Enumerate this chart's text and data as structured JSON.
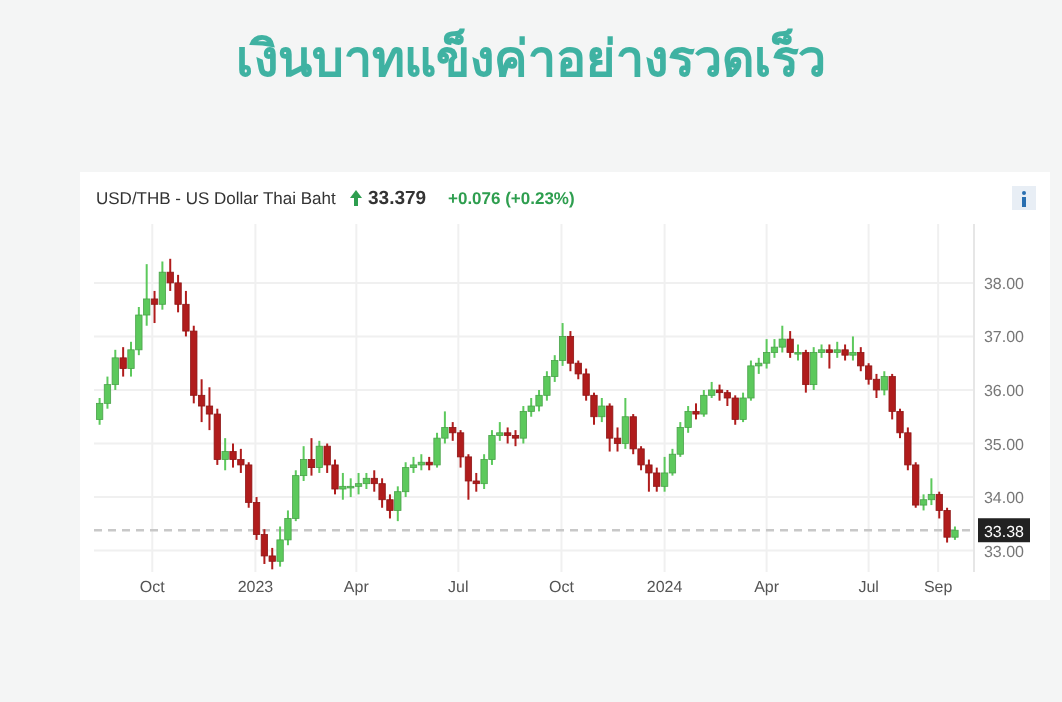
{
  "chart_data": {
    "type": "candlestick",
    "title": "เงินบาทแข็งค่าอย่างรวดเร็ว",
    "subtitle": "USD/THB - US Dollar Thai Baht",
    "annotations": [
      "33.379",
      "+0.076 (+0.23%)"
    ],
    "x": [
      "2022-08-15",
      "2022-08-22",
      "2022-08-29",
      "2022-09-05",
      "2022-09-12",
      "2022-09-19",
      "2022-09-26",
      "2022-10-03",
      "2022-10-10",
      "2022-10-17",
      "2022-10-24",
      "2022-10-31",
      "2022-11-07",
      "2022-11-14",
      "2022-11-21",
      "2022-11-28",
      "2022-12-05",
      "2022-12-12",
      "2022-12-19",
      "2022-12-26",
      "2023-01-02",
      "2023-01-09",
      "2023-01-16",
      "2023-01-23",
      "2023-01-30",
      "2023-02-06",
      "2023-02-13",
      "2023-02-20",
      "2023-02-27",
      "2023-03-06",
      "2023-03-13",
      "2023-03-20",
      "2023-03-27",
      "2023-04-03",
      "2023-04-10",
      "2023-04-17",
      "2023-04-24",
      "2023-05-01",
      "2023-05-08",
      "2023-05-15",
      "2023-05-22",
      "2023-05-29",
      "2023-06-05",
      "2023-06-12",
      "2023-06-19",
      "2023-06-26",
      "2023-07-03",
      "2023-07-10",
      "2023-07-17",
      "2023-07-24",
      "2023-07-31",
      "2023-08-07",
      "2023-08-14",
      "2023-08-21",
      "2023-08-28",
      "2023-09-04",
      "2023-09-11",
      "2023-09-18",
      "2023-09-25",
      "2023-10-02",
      "2023-10-09",
      "2023-10-16",
      "2023-10-23",
      "2023-10-30",
      "2023-11-06",
      "2023-11-13",
      "2023-11-20",
      "2023-11-27",
      "2023-12-04",
      "2023-12-11",
      "2023-12-18",
      "2023-12-25",
      "2024-01-01",
      "2024-01-08",
      "2024-01-15",
      "2024-01-22",
      "2024-01-29",
      "2024-02-05",
      "2024-02-12",
      "2024-02-19",
      "2024-02-26",
      "2024-03-04",
      "2024-03-11",
      "2024-03-18",
      "2024-03-25",
      "2024-04-01",
      "2024-04-08",
      "2024-04-15",
      "2024-04-22",
      "2024-04-29",
      "2024-05-06",
      "2024-05-13",
      "2024-05-20",
      "2024-05-27",
      "2024-06-03",
      "2024-06-10",
      "2024-06-17",
      "2024-06-24",
      "2024-07-01",
      "2024-07-08",
      "2024-07-15",
      "2024-07-22",
      "2024-07-29",
      "2024-08-05",
      "2024-08-12",
      "2024-08-19",
      "2024-08-26",
      "2024-09-02",
      "2024-09-09",
      "2024-09-16"
    ],
    "ohlc": [
      [
        35.45,
        35.85,
        35.35,
        35.75
      ],
      [
        35.75,
        36.25,
        35.65,
        36.1
      ],
      [
        36.1,
        36.75,
        36.0,
        36.6
      ],
      [
        36.6,
        36.8,
        36.25,
        36.4
      ],
      [
        36.4,
        36.9,
        36.25,
        36.75
      ],
      [
        36.75,
        37.55,
        36.65,
        37.4
      ],
      [
        37.4,
        38.35,
        37.2,
        37.7
      ],
      [
        37.7,
        37.85,
        37.25,
        37.6
      ],
      [
        37.6,
        38.4,
        37.5,
        38.2
      ],
      [
        38.2,
        38.45,
        37.85,
        38.0
      ],
      [
        38.0,
        38.15,
        37.45,
        37.6
      ],
      [
        37.6,
        37.85,
        37.0,
        37.1
      ],
      [
        37.1,
        37.2,
        35.75,
        35.9
      ],
      [
        35.9,
        36.2,
        35.4,
        35.7
      ],
      [
        35.7,
        36.05,
        35.25,
        35.55
      ],
      [
        35.55,
        35.65,
        34.6,
        34.7
      ],
      [
        34.7,
        35.1,
        34.5,
        34.85
      ],
      [
        34.85,
        35.0,
        34.55,
        34.7
      ],
      [
        34.7,
        34.9,
        34.45,
        34.6
      ],
      [
        34.6,
        34.65,
        33.8,
        33.9
      ],
      [
        33.9,
        34.0,
        33.2,
        33.3
      ],
      [
        33.3,
        33.4,
        32.75,
        32.9
      ],
      [
        32.9,
        33.05,
        32.65,
        32.8
      ],
      [
        32.8,
        33.45,
        32.7,
        33.2
      ],
      [
        33.2,
        33.75,
        33.1,
        33.6
      ],
      [
        33.6,
        34.5,
        33.55,
        34.4
      ],
      [
        34.4,
        34.95,
        34.3,
        34.7
      ],
      [
        34.7,
        35.1,
        34.4,
        34.55
      ],
      [
        34.55,
        35.05,
        34.45,
        34.95
      ],
      [
        34.95,
        35.0,
        34.45,
        34.6
      ],
      [
        34.6,
        34.7,
        34.05,
        34.15
      ],
      [
        34.15,
        34.45,
        33.95,
        34.2
      ],
      [
        34.2,
        34.35,
        34.0,
        34.2
      ],
      [
        34.2,
        34.45,
        34.05,
        34.25
      ],
      [
        34.25,
        34.45,
        34.15,
        34.35
      ],
      [
        34.35,
        34.5,
        34.1,
        34.25
      ],
      [
        34.25,
        34.35,
        33.8,
        33.95
      ],
      [
        33.95,
        34.05,
        33.6,
        33.75
      ],
      [
        33.75,
        34.2,
        33.55,
        34.1
      ],
      [
        34.1,
        34.65,
        34.0,
        34.55
      ],
      [
        34.55,
        34.75,
        34.45,
        34.6
      ],
      [
        34.6,
        34.8,
        34.5,
        34.65
      ],
      [
        34.65,
        34.75,
        34.5,
        34.6
      ],
      [
        34.6,
        35.2,
        34.55,
        35.1
      ],
      [
        35.1,
        35.6,
        35.0,
        35.3
      ],
      [
        35.3,
        35.4,
        35.05,
        35.2
      ],
      [
        35.2,
        35.25,
        34.55,
        34.75
      ],
      [
        34.75,
        34.8,
        33.95,
        34.3
      ],
      [
        34.3,
        34.45,
        34.1,
        34.25
      ],
      [
        34.25,
        34.8,
        34.15,
        34.7
      ],
      [
        34.7,
        35.25,
        34.6,
        35.15
      ],
      [
        35.15,
        35.4,
        35.05,
        35.2
      ],
      [
        35.2,
        35.3,
        35.0,
        35.15
      ],
      [
        35.15,
        35.25,
        34.95,
        35.1
      ],
      [
        35.1,
        35.7,
        35.0,
        35.6
      ],
      [
        35.6,
        35.85,
        35.5,
        35.7
      ],
      [
        35.7,
        36.0,
        35.6,
        35.9
      ],
      [
        35.9,
        36.35,
        35.8,
        36.25
      ],
      [
        36.25,
        36.65,
        36.15,
        36.55
      ],
      [
        36.55,
        37.25,
        36.45,
        37.0
      ],
      [
        37.0,
        37.1,
        36.35,
        36.5
      ],
      [
        36.5,
        36.55,
        36.2,
        36.3
      ],
      [
        36.3,
        36.4,
        35.8,
        35.9
      ],
      [
        35.9,
        35.95,
        35.35,
        35.5
      ],
      [
        35.5,
        35.85,
        35.4,
        35.7
      ],
      [
        35.7,
        35.75,
        34.85,
        35.1
      ],
      [
        35.1,
        35.3,
        34.85,
        35.0
      ],
      [
        35.0,
        35.85,
        34.9,
        35.5
      ],
      [
        35.5,
        35.55,
        34.8,
        34.9
      ],
      [
        34.9,
        34.95,
        34.5,
        34.6
      ],
      [
        34.6,
        34.7,
        34.1,
        34.45
      ],
      [
        34.45,
        34.55,
        34.1,
        34.2
      ],
      [
        34.2,
        34.75,
        34.1,
        34.45
      ],
      [
        34.45,
        34.9,
        34.4,
        34.8
      ],
      [
        34.8,
        35.4,
        34.75,
        35.3
      ],
      [
        35.3,
        35.7,
        35.2,
        35.6
      ],
      [
        35.6,
        35.75,
        35.45,
        35.55
      ],
      [
        35.55,
        36.0,
        35.5,
        35.9
      ],
      [
        35.9,
        36.15,
        35.85,
        36.0
      ],
      [
        36.0,
        36.1,
        35.8,
        35.95
      ],
      [
        35.95,
        36.0,
        35.7,
        35.85
      ],
      [
        35.85,
        35.9,
        35.35,
        35.45
      ],
      [
        35.45,
        35.95,
        35.4,
        35.85
      ],
      [
        35.85,
        36.55,
        35.8,
        36.45
      ],
      [
        36.45,
        36.6,
        36.3,
        36.5
      ],
      [
        36.5,
        36.95,
        36.4,
        36.7
      ],
      [
        36.7,
        36.95,
        36.6,
        36.8
      ],
      [
        36.8,
        37.2,
        36.7,
        36.95
      ],
      [
        36.95,
        37.1,
        36.6,
        36.7
      ],
      [
        36.7,
        36.85,
        36.55,
        36.7
      ],
      [
        36.7,
        36.75,
        35.95,
        36.1
      ],
      [
        36.1,
        36.8,
        36.0,
        36.7
      ],
      [
        36.7,
        36.85,
        36.6,
        36.75
      ],
      [
        36.75,
        36.85,
        36.4,
        36.7
      ],
      [
        36.7,
        36.9,
        36.6,
        36.75
      ],
      [
        36.75,
        36.85,
        36.55,
        36.65
      ],
      [
        36.65,
        37.0,
        36.55,
        36.7
      ],
      [
        36.7,
        36.8,
        36.35,
        36.45
      ],
      [
        36.45,
        36.5,
        36.1,
        36.2
      ],
      [
        36.2,
        36.3,
        35.85,
        36.0
      ],
      [
        36.0,
        36.35,
        35.9,
        36.25
      ],
      [
        36.25,
        36.3,
        35.45,
        35.6
      ],
      [
        35.6,
        35.65,
        35.1,
        35.2
      ],
      [
        35.2,
        35.3,
        34.5,
        34.6
      ],
      [
        34.6,
        34.65,
        33.8,
        33.85
      ],
      [
        33.85,
        34.05,
        33.75,
        33.95
      ],
      [
        33.95,
        34.35,
        33.85,
        34.05
      ],
      [
        34.05,
        34.1,
        33.6,
        33.75
      ],
      [
        33.75,
        33.8,
        33.15,
        33.25
      ],
      [
        33.25,
        33.45,
        33.2,
        33.38
      ]
    ],
    "xlim": [
      "2022-08-10",
      "2024-10-03"
    ],
    "xticks": [
      {
        "value": "2022-10-01",
        "label": "Oct"
      },
      {
        "value": "2023-01-01",
        "label": "2023"
      },
      {
        "value": "2023-04-01",
        "label": "Apr"
      },
      {
        "value": "2023-07-01",
        "label": "Jul"
      },
      {
        "value": "2023-10-01",
        "label": "Oct"
      },
      {
        "value": "2024-01-01",
        "label": "2024"
      },
      {
        "value": "2024-04-01",
        "label": "Apr"
      },
      {
        "value": "2024-07-01",
        "label": "Jul"
      },
      {
        "value": "2024-09-01",
        "label": "Sep"
      }
    ],
    "ylim": [
      32.6,
      39.1
    ],
    "yticks": [
      {
        "value": 33,
        "label": "33.00"
      },
      {
        "value": 34,
        "label": "34.00"
      },
      {
        "value": 35,
        "label": "35.00"
      },
      {
        "value": 36,
        "label": "36.00"
      },
      {
        "value": 37,
        "label": "37.00"
      },
      {
        "value": 38,
        "label": "38.00"
      }
    ],
    "ref_lines": [
      {
        "axis": "y",
        "value": 33.38,
        "label": "33.38",
        "color": "#c8c8c8",
        "line_style": "dashed"
      }
    ],
    "grid": true
  }
}
